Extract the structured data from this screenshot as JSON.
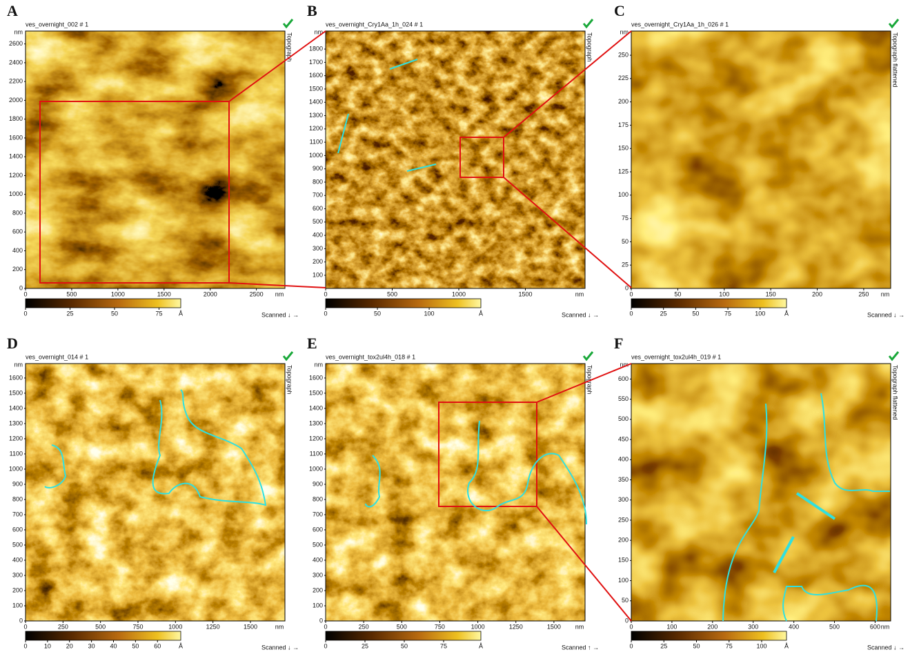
{
  "panels": [
    {
      "letter": "A",
      "file": "ves_overnight_002 # 1",
      "side_label": "Topograph",
      "y_unit": "nm",
      "x_unit": "nm",
      "y_ticks": [
        0,
        200,
        400,
        600,
        800,
        1000,
        1200,
        1400,
        1600,
        1800,
        2000,
        2200,
        2400,
        2600
      ],
      "x_ticks": [
        0,
        500,
        1000,
        1500,
        2000,
        2500
      ],
      "colorbar_ticks": [
        0,
        25,
        50,
        75
      ],
      "colorbar_unit": "Å",
      "scan": "Scanned ↓ →"
    },
    {
      "letter": "B",
      "file": "ves_overnight_Cry1Aa_1h_024 # 1",
      "side_label": "Topograph",
      "y_unit": "nm",
      "x_unit": "nm",
      "y_ticks": [
        100,
        200,
        300,
        400,
        500,
        600,
        700,
        800,
        900,
        1000,
        1100,
        1200,
        1300,
        1400,
        1500,
        1600,
        1700,
        1800
      ],
      "x_ticks": [
        0,
        500,
        1000,
        1500
      ],
      "colorbar_ticks": [
        0,
        50,
        100
      ],
      "colorbar_unit": "Å",
      "scan": "Scanned ↓ →"
    },
    {
      "letter": "C",
      "file": "ves_overnight_Cry1Aa_1h_026 # 1",
      "side_label": "Topograph flattened",
      "y_unit": "nm",
      "x_unit": "nm",
      "y_ticks": [
        0,
        25,
        50,
        75,
        100,
        125,
        150,
        175,
        200,
        225,
        250
      ],
      "x_ticks": [
        0,
        50,
        100,
        150,
        200,
        250
      ],
      "colorbar_ticks": [
        0,
        25,
        50,
        75,
        100
      ],
      "colorbar_unit": "Å",
      "scan": "Scanned ↓ →"
    },
    {
      "letter": "D",
      "file": "ves_overnight_014 # 1",
      "side_label": "Topograph",
      "y_unit": "nm",
      "x_unit": "nm",
      "y_ticks": [
        0,
        100,
        200,
        300,
        400,
        500,
        600,
        700,
        800,
        900,
        1000,
        1100,
        1200,
        1300,
        1400,
        1500,
        1600
      ],
      "x_ticks": [
        0,
        250,
        500,
        750,
        1000,
        1250,
        1500
      ],
      "colorbar_ticks": [
        0,
        10,
        20,
        30,
        40,
        50,
        60
      ],
      "colorbar_unit": "Å",
      "scan": "Scanned ↓ →"
    },
    {
      "letter": "E",
      "file": "ves_overnight_tox2ul4h_018 # 1",
      "side_label": "Topograph",
      "y_unit": "nm",
      "x_unit": "nm",
      "y_ticks": [
        0,
        100,
        200,
        300,
        400,
        500,
        600,
        700,
        800,
        900,
        1000,
        1100,
        1200,
        1300,
        1400,
        1500,
        1600
      ],
      "x_ticks": [
        0,
        250,
        500,
        750,
        1000,
        1250,
        1500
      ],
      "colorbar_ticks": [
        0,
        25,
        50,
        75
      ],
      "colorbar_unit": "Å",
      "scan": "Scanned ↑ →"
    },
    {
      "letter": "F",
      "file": "ves_overnight_tox2ul4h_019 # 1",
      "side_label": "Topograph flattened",
      "y_unit": "nm",
      "x_unit": "nm",
      "y_ticks": [
        0,
        50,
        100,
        150,
        200,
        250,
        300,
        350,
        400,
        450,
        500,
        550,
        600
      ],
      "x_ticks": [
        0,
        100,
        200,
        300,
        400,
        500,
        600
      ],
      "colorbar_ticks": [
        0,
        25,
        50,
        75,
        100
      ],
      "colorbar_unit": "Å",
      "scan": "Scanned ↓ →"
    }
  ]
}
